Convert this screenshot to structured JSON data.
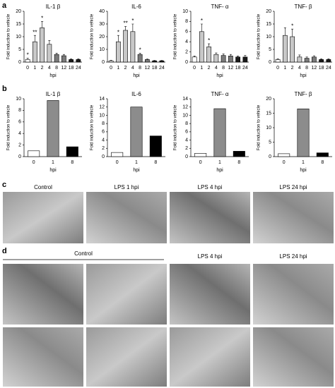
{
  "panels": {
    "labels": [
      "a",
      "b",
      "c",
      "d"
    ]
  },
  "micrographs": {
    "c": [
      "Control",
      "LPS 1 hpi",
      "LPS 4 hpi",
      "LPS 24 hpi"
    ],
    "d": [
      "Control",
      "LPS 4 hpi",
      "LPS 24 hpi"
    ]
  },
  "chart_data": [
    {
      "type": "bar",
      "title": "IL-1 β",
      "categories": [
        "0",
        "1",
        "2",
        "4",
        "8",
        "12",
        "18",
        "24"
      ],
      "values": [
        1,
        8,
        13.5,
        7,
        3,
        2.5,
        1,
        1
      ],
      "errors": [
        0.5,
        2.5,
        2.5,
        1.5,
        0.5,
        0.5,
        0.3,
        0.3
      ],
      "annotations": [
        "*",
        "**",
        "*",
        null,
        null,
        null,
        null,
        null
      ],
      "colors": [
        "#ffffff",
        "#c8c8c8",
        "#c8c8c8",
        "#c8c8c8",
        "#7a7a7a",
        "#7a7a7a",
        "#1a1a1a",
        "#1a1a1a"
      ],
      "ylim": [
        0,
        20
      ],
      "yticks": [
        0,
        5,
        10,
        15,
        20
      ],
      "ylabel": "Fold induction to vehicle",
      "xlabel": "hpi"
    },
    {
      "type": "bar",
      "title": "IL-6",
      "categories": [
        "0",
        "1",
        "2",
        "4",
        "8",
        "12",
        "18",
        "24"
      ],
      "values": [
        1,
        16,
        25,
        24,
        6,
        2,
        1,
        1
      ],
      "errors": [
        0.5,
        5,
        3,
        6,
        1,
        0.5,
        0.3,
        0.3
      ],
      "annotations": [
        null,
        "*",
        "**",
        "*",
        "*",
        null,
        null,
        null
      ],
      "colors": [
        "#ffffff",
        "#c8c8c8",
        "#c8c8c8",
        "#c8c8c8",
        "#7a7a7a",
        "#7a7a7a",
        "#1a1a1a",
        "#1a1a1a"
      ],
      "ylim": [
        0,
        40
      ],
      "yticks": [
        0,
        10,
        20,
        30,
        40
      ],
      "ylabel": "Fold induction to vehicle",
      "xlabel": "hpi"
    },
    {
      "type": "bar",
      "title": "TNF- α",
      "categories": [
        "0",
        "1",
        "2",
        "4",
        "8",
        "12",
        "18",
        "24"
      ],
      "values": [
        1,
        6,
        3,
        1.5,
        1.3,
        1.2,
        1,
        1
      ],
      "errors": [
        0.2,
        1.5,
        0.6,
        0.3,
        0.3,
        0.3,
        0.2,
        0.3
      ],
      "annotations": [
        null,
        "*",
        "*",
        null,
        null,
        null,
        null,
        null
      ],
      "colors": [
        "#ffffff",
        "#c8c8c8",
        "#c8c8c8",
        "#c8c8c8",
        "#7a7a7a",
        "#7a7a7a",
        "#1a1a1a",
        "#1a1a1a"
      ],
      "ylim": [
        0,
        10
      ],
      "yticks": [
        0,
        2,
        4,
        6,
        8,
        10
      ],
      "ylabel": "Fold induction to vehicle",
      "xlabel": "hpi"
    },
    {
      "type": "bar",
      "title": "TNF- β",
      "categories": [
        "0",
        "1",
        "2",
        "4",
        "8",
        "12",
        "18",
        "24"
      ],
      "values": [
        1,
        10.5,
        10,
        2,
        1.5,
        2,
        1,
        1
      ],
      "errors": [
        0.3,
        3,
        3,
        0.8,
        0.5,
        0.5,
        0.3,
        0.3
      ],
      "annotations": [
        null,
        null,
        "*",
        null,
        null,
        null,
        null,
        null
      ],
      "colors": [
        "#ffffff",
        "#c8c8c8",
        "#c8c8c8",
        "#c8c8c8",
        "#7a7a7a",
        "#7a7a7a",
        "#1a1a1a",
        "#1a1a1a"
      ],
      "ylim": [
        0,
        20
      ],
      "yticks": [
        0,
        5,
        10,
        15,
        20
      ],
      "ylabel": "Fold induction to vehicle",
      "xlabel": "hpi"
    },
    {
      "type": "bar",
      "title": "IL-1 β",
      "categories": [
        "0",
        "1",
        "8"
      ],
      "values": [
        1,
        9.7,
        1.7
      ],
      "colors": [
        "#ffffff",
        "#8c8c8c",
        "#000000"
      ],
      "ylim": [
        0,
        10
      ],
      "yticks": [
        0,
        2,
        4,
        6,
        8,
        10
      ],
      "ylabel": "Fold induction to vehicle",
      "xlabel": "hpi"
    },
    {
      "type": "bar",
      "title": "IL-6",
      "categories": [
        "0",
        "1",
        "8"
      ],
      "values": [
        1,
        12,
        5
      ],
      "colors": [
        "#ffffff",
        "#8c8c8c",
        "#000000"
      ],
      "ylim": [
        0,
        14
      ],
      "yticks": [
        0,
        2,
        4,
        6,
        8,
        10,
        12,
        14
      ],
      "ylabel": "Fold induction to vehicle",
      "xlabel": "hpi"
    },
    {
      "type": "bar",
      "title": "TNF- α",
      "categories": [
        "0",
        "1",
        "8"
      ],
      "values": [
        0.8,
        11.6,
        1.3
      ],
      "colors": [
        "#ffffff",
        "#8c8c8c",
        "#000000"
      ],
      "ylim": [
        0,
        14
      ],
      "yticks": [
        0,
        2,
        4,
        6,
        8,
        10,
        12,
        14
      ],
      "ylabel": "Fold induction to vehicle",
      "xlabel": "hpi"
    },
    {
      "type": "bar",
      "title": "TNF- β",
      "categories": [
        "0",
        "1",
        "8"
      ],
      "values": [
        1,
        16.5,
        1.3
      ],
      "colors": [
        "#ffffff",
        "#8c8c8c",
        "#000000"
      ],
      "ylim": [
        0,
        20
      ],
      "yticks": [
        0,
        5,
        10,
        15,
        20
      ],
      "ylabel": "Fold induction to vehicle",
      "xlabel": "hpi"
    }
  ]
}
